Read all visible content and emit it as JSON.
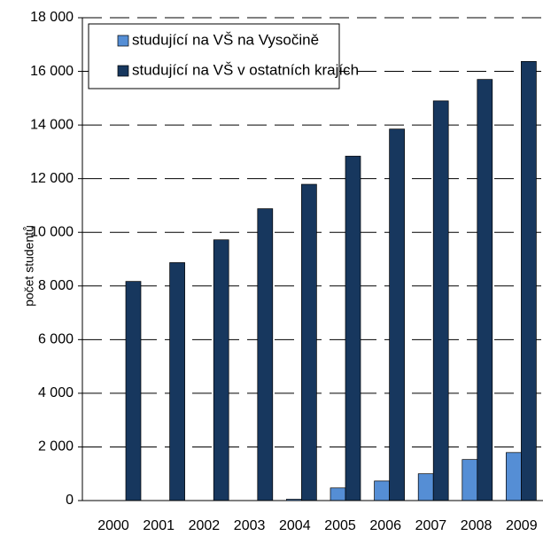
{
  "chart_data": {
    "type": "bar",
    "y_label": "počet studentů",
    "categories": [
      "2000",
      "2001",
      "2002",
      "2003",
      "2004",
      "2005",
      "2006",
      "2007",
      "2008",
      "2009"
    ],
    "series": [
      {
        "name": "studující na VŠ na Vysočině",
        "color": "#558ed5",
        "values": [
          0,
          0,
          0,
          0,
          50,
          470,
          730,
          1000,
          1530,
          1790
        ]
      },
      {
        "name": "studující na VŠ v ostatních krajích",
        "color": "#17375e",
        "values": [
          8170,
          8870,
          9720,
          10880,
          11790,
          12840,
          13850,
          14900,
          15700,
          16370
        ]
      }
    ],
    "ylim": [
      0,
      18000
    ],
    "yticks": [
      0,
      {
        "value": 2000,
        "label": "2 000"
      },
      {
        "value": 4000,
        "label": "4 000"
      },
      {
        "value": 6000,
        "label": "6 000"
      },
      {
        "value": 8000,
        "label": "8 000"
      },
      {
        "value": 10000,
        "label": "10 000"
      },
      {
        "value": 12000,
        "label": "12 000"
      },
      {
        "value": 14000,
        "label": "14 000"
      },
      {
        "value": 16000,
        "label": "16 000"
      },
      {
        "value": 18000,
        "label": "18 000"
      }
    ],
    "grid": true,
    "legend": "top-left"
  }
}
